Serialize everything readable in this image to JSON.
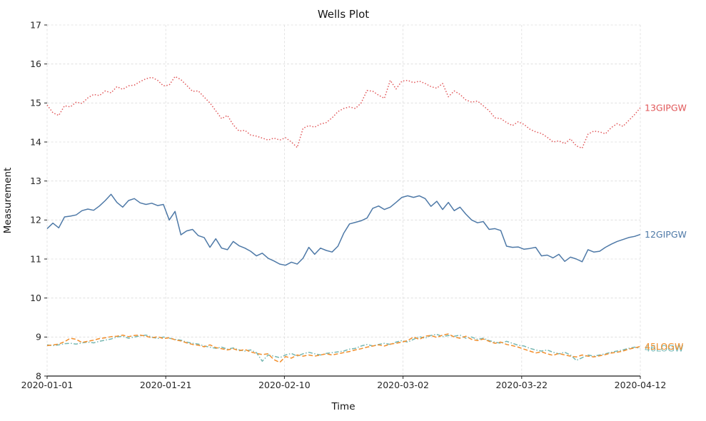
{
  "chart_data": {
    "type": "line",
    "title": "Wells Plot",
    "xlabel": "Time",
    "ylabel": "Measurement",
    "x_start": "2020-01-01",
    "x_end": "2020-04-12",
    "x_tick_labels": [
      "2020-01-01",
      "2020-01-21",
      "2020-02-10",
      "2020-03-02",
      "2020-03-22",
      "2020-04-12"
    ],
    "y_tick_labels": [
      "8",
      "9",
      "10",
      "11",
      "12",
      "13",
      "14",
      "15",
      "16",
      "17"
    ],
    "ylim": [
      8,
      17
    ],
    "grid": true,
    "background_color": "#ffffff",
    "grid_color": "#dcdcdc",
    "axis_color": "#262626",
    "legend_position": "line-end-labels-right",
    "series": [
      {
        "name": "13GIPGW",
        "color": "#e15759",
        "linestyle": "dotted",
        "values": [
          14.95,
          14.75,
          14.68,
          14.93,
          14.9,
          15.02,
          14.99,
          15.13,
          15.22,
          15.19,
          15.31,
          15.26,
          15.42,
          15.35,
          15.44,
          15.46,
          15.55,
          15.62,
          15.66,
          15.58,
          15.44,
          15.46,
          15.68,
          15.6,
          15.45,
          15.3,
          15.31,
          15.15,
          15.0,
          14.8,
          14.6,
          14.68,
          14.44,
          14.28,
          14.3,
          14.18,
          14.15,
          14.1,
          14.05,
          14.1,
          14.05,
          14.11,
          14.0,
          13.86,
          14.35,
          14.42,
          14.38,
          14.46,
          14.5,
          14.62,
          14.78,
          14.86,
          14.9,
          14.86,
          15.0,
          15.32,
          15.3,
          15.2,
          15.12,
          15.58,
          15.36,
          15.56,
          15.58,
          15.52,
          15.56,
          15.5,
          15.42,
          15.38,
          15.5,
          15.16,
          15.31,
          15.22,
          15.08,
          15.02,
          15.05,
          14.93,
          14.8,
          14.62,
          14.6,
          14.5,
          14.42,
          14.52,
          14.45,
          14.33,
          14.26,
          14.22,
          14.12,
          14.0,
          14.03,
          13.96,
          14.08,
          13.9,
          13.84,
          14.2,
          14.28,
          14.26,
          14.21,
          14.37,
          14.47,
          14.4,
          14.55,
          14.7,
          14.88
        ]
      },
      {
        "name": "12GIPGW",
        "color": "#4e79a7",
        "linestyle": "solid",
        "values": [
          11.78,
          11.92,
          11.8,
          12.08,
          12.1,
          12.13,
          12.24,
          12.28,
          12.25,
          12.36,
          12.5,
          12.66,
          12.45,
          12.33,
          12.5,
          12.55,
          12.44,
          12.4,
          12.43,
          12.37,
          12.4,
          12.0,
          12.22,
          11.62,
          11.72,
          11.76,
          11.6,
          11.55,
          11.3,
          11.52,
          11.28,
          11.24,
          11.45,
          11.34,
          11.28,
          11.2,
          11.08,
          11.15,
          11.02,
          10.95,
          10.87,
          10.84,
          10.92,
          10.87,
          11.02,
          11.3,
          11.12,
          11.28,
          11.22,
          11.18,
          11.33,
          11.66,
          11.9,
          11.94,
          11.98,
          12.05,
          12.3,
          12.36,
          12.27,
          12.33,
          12.45,
          12.58,
          12.62,
          12.58,
          12.62,
          12.55,
          12.35,
          12.48,
          12.27,
          12.45,
          12.24,
          12.33,
          12.15,
          12.0,
          11.93,
          11.96,
          11.76,
          11.78,
          11.73,
          11.33,
          11.3,
          11.31,
          11.25,
          11.27,
          11.3,
          11.08,
          11.1,
          11.03,
          11.12,
          10.94,
          11.05,
          11.0,
          10.93,
          11.24,
          11.18,
          11.2,
          11.3,
          11.38,
          11.45,
          11.5,
          11.55,
          11.58,
          11.63
        ]
      },
      {
        "name": "46LOGW",
        "color": "#76b7b2",
        "linestyle": "dashdot",
        "values": [
          8.8,
          8.78,
          8.8,
          8.83,
          8.84,
          8.82,
          8.85,
          8.87,
          8.85,
          8.89,
          8.92,
          8.95,
          9.0,
          9.02,
          8.97,
          9.0,
          9.03,
          9.05,
          9.0,
          8.96,
          9.0,
          8.97,
          8.94,
          8.92,
          8.87,
          8.84,
          8.82,
          8.77,
          8.74,
          8.71,
          8.74,
          8.69,
          8.72,
          8.67,
          8.64,
          8.67,
          8.6,
          8.38,
          8.54,
          8.51,
          8.47,
          8.54,
          8.58,
          8.51,
          8.57,
          8.61,
          8.57,
          8.54,
          8.58,
          8.6,
          8.62,
          8.64,
          8.69,
          8.71,
          8.77,
          8.81,
          8.77,
          8.81,
          8.84,
          8.81,
          8.87,
          8.91,
          8.87,
          8.94,
          9.01,
          8.97,
          9.04,
          9.07,
          9.01,
          9.04,
          9.02,
          9.05,
          8.97,
          9.0,
          8.94,
          8.97,
          8.91,
          8.87,
          8.84,
          8.89,
          8.84,
          8.79,
          8.77,
          8.71,
          8.67,
          8.64,
          8.67,
          8.61,
          8.57,
          8.61,
          8.54,
          8.4,
          8.47,
          8.54,
          8.51,
          8.54,
          8.57,
          8.61,
          8.64,
          8.67,
          8.71,
          8.74,
          8.71
        ]
      },
      {
        "name": "45LOGW",
        "color": "#f28e2b",
        "linestyle": "dashed",
        "values": [
          8.78,
          8.8,
          8.82,
          8.88,
          8.97,
          8.94,
          8.86,
          8.89,
          8.92,
          8.96,
          8.98,
          9.01,
          9.02,
          9.05,
          9.01,
          9.04,
          9.05,
          9.02,
          8.98,
          9.01,
          8.96,
          8.98,
          8.93,
          8.9,
          8.85,
          8.81,
          8.79,
          8.75,
          8.8,
          8.73,
          8.7,
          8.67,
          8.7,
          8.65,
          8.68,
          8.62,
          8.58,
          8.55,
          8.57,
          8.42,
          8.35,
          8.5,
          8.46,
          8.54,
          8.51,
          8.54,
          8.51,
          8.54,
          8.57,
          8.54,
          8.57,
          8.6,
          8.63,
          8.67,
          8.7,
          8.74,
          8.77,
          8.8,
          8.77,
          8.82,
          8.84,
          8.87,
          8.91,
          9.0,
          8.94,
          9.02,
          9.04,
          8.99,
          9.05,
          9.08,
          9.0,
          8.97,
          9.02,
          8.94,
          8.91,
          8.95,
          8.89,
          8.84,
          8.87,
          8.81,
          8.78,
          8.74,
          8.69,
          8.64,
          8.59,
          8.62,
          8.57,
          8.53,
          8.58,
          8.54,
          8.51,
          8.49,
          8.54,
          8.51,
          8.49,
          8.52,
          8.55,
          8.59,
          8.61,
          8.64,
          8.69,
          8.72,
          8.76
        ]
      }
    ]
  }
}
